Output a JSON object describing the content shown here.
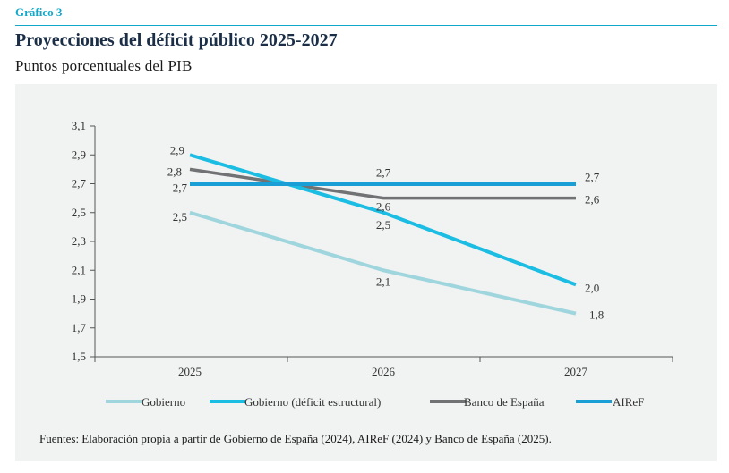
{
  "header": {
    "label": "Gráfico 3",
    "title": "Proyecciones del déficit público 2025-2027",
    "subtitle": "Puntos porcentuales del PIB"
  },
  "source": "Fuentes: Elaboración propia a partir de Gobierno de España (2024), AIReF (2024) y Banco de España (2025).",
  "colors": {
    "label": "#12a8c9",
    "title": "#1a2e47",
    "panel": "#f1f2f2",
    "gobierno": "#9fd6de",
    "gobierno_estructural": "#1cbde3",
    "banco_espana": "#707274",
    "airef": "#1a9ed6"
  },
  "chart_data": {
    "type": "line",
    "x": [
      "2025",
      "2026",
      "2027"
    ],
    "ylim": [
      1.5,
      3.1
    ],
    "yticks": [
      "3,1",
      "2,9",
      "2,7",
      "2,5",
      "2,3",
      "2,1",
      "1,9",
      "1,7",
      "1,5"
    ],
    "grid": false,
    "legend_position": "bottom",
    "series": [
      {
        "name": "Gobierno",
        "values": [
          2.5,
          2.1,
          1.8
        ],
        "labels": [
          "2,5",
          "2,1",
          "1,8"
        ],
        "color": "#9fd6de"
      },
      {
        "name": "Gobierno (déficit estructural)",
        "values": [
          2.9,
          2.5,
          2.0
        ],
        "labels": [
          "2,9",
          "2,5",
          "2,0"
        ],
        "color": "#1cbde3"
      },
      {
        "name": "Banco de España",
        "values": [
          2.8,
          2.6,
          2.6
        ],
        "labels": [
          "2,8",
          "2,6",
          "2,6"
        ],
        "color": "#707274"
      },
      {
        "name": "AIReF",
        "values": [
          2.7,
          2.7,
          2.7
        ],
        "labels": [
          "2,7",
          "2,7",
          "2,7"
        ],
        "color": "#1a9ed6"
      }
    ]
  }
}
